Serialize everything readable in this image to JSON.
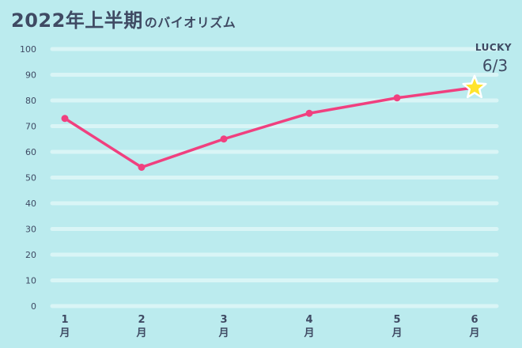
{
  "title": {
    "main": "2022年上半期",
    "suffix": "のバイオリズム"
  },
  "colors": {
    "background": "#BBEBEE",
    "gridline": "#D9F5F6",
    "line": "#F0407F",
    "text": "#3F4A63",
    "star_fill": "#FFE42E",
    "star_stroke": "#FFFFFF"
  },
  "chart_data": {
    "type": "line",
    "categories": [
      "1",
      "2",
      "3",
      "4",
      "5",
      "6"
    ],
    "category_unit": "月",
    "values": [
      73,
      54,
      65,
      75,
      81,
      85
    ],
    "ylim": [
      0,
      100
    ],
    "yticks": [
      0,
      10,
      20,
      30,
      40,
      50,
      60,
      70,
      80,
      90,
      100
    ],
    "grid": true,
    "title": "2022年上半期のバイオリズム",
    "annotation": {
      "label": "LUCKY",
      "date": "6/3",
      "marker": "star-icon",
      "at_index": 5
    }
  }
}
